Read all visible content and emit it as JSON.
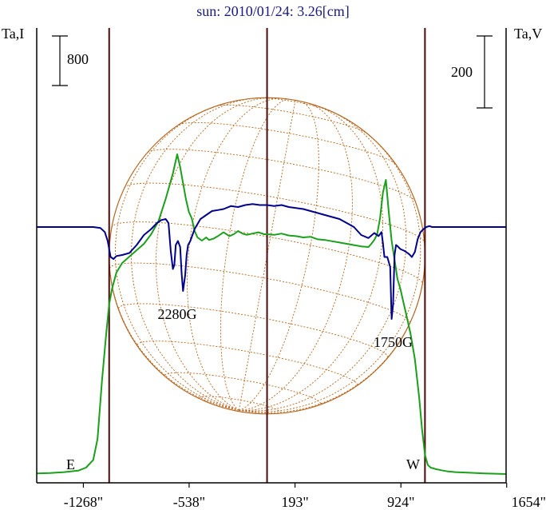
{
  "chart_data": {
    "type": "line",
    "title": "sun: 2010/01/24: 3.26[cm]",
    "left_axis_label": "Ta,I",
    "right_axis_label": "Ta,V",
    "xlim": [
      -1590,
      1650
    ],
    "x_ticks": [
      {
        "value": -1268,
        "label": "-1268\""
      },
      {
        "value": -538,
        "label": "-538\""
      },
      {
        "value": 193,
        "label": "193\""
      },
      {
        "value": 924,
        "label": "924\""
      },
      {
        "value": 1654,
        "label": "1654\""
      }
    ],
    "vertical_lines_x": [
      -1090,
      0,
      1090
    ],
    "limb_labels": {
      "east": "E",
      "west": "W"
    },
    "scale_bars": {
      "intensity": "800",
      "polarization": "200"
    },
    "annotations": [
      {
        "text": "2280G",
        "x": -620
      },
      {
        "text": "1750G",
        "x": 870
      }
    ],
    "colors": {
      "intensity": "#1aa01a",
      "polarization": "#00008b",
      "grid": "#b5651d",
      "vlines": "#4a0a0a",
      "axes": "#000000",
      "title": "#1a1a7a"
    },
    "series": [
      {
        "name": "Ta,I",
        "color": "#1aa01a",
        "x": [
          -1590,
          -1500,
          -1400,
          -1300,
          -1250,
          -1200,
          -1170,
          -1140,
          -1110,
          -1090,
          -1070,
          -1040,
          -1000,
          -950,
          -900,
          -850,
          -800,
          -750,
          -700,
          -650,
          -620,
          -600,
          -580,
          -560,
          -540,
          -520,
          -500,
          -480,
          -450,
          -420,
          -400,
          -370,
          -340,
          -300,
          -260,
          -230,
          -200,
          -170,
          -140,
          -100,
          -60,
          -20,
          0,
          50,
          100,
          150,
          200,
          250,
          300,
          350,
          400,
          450,
          500,
          550,
          600,
          650,
          700,
          720,
          740,
          760,
          780,
          800,
          820,
          840,
          860,
          870,
          880,
          890,
          900,
          920,
          940,
          960,
          990,
          1020,
          1050,
          1070,
          1090,
          1110,
          1130,
          1160,
          1200,
          1250,
          1300,
          1400,
          1500,
          1650
        ],
        "y": [
          -90,
          -85,
          -70,
          -45,
          0,
          120,
          450,
          1350,
          2100,
          2550,
          2800,
          3050,
          3200,
          3300,
          3400,
          3500,
          3650,
          3850,
          4200,
          4600,
          4900,
          4700,
          4450,
          4200,
          4000,
          3900,
          3700,
          3600,
          3550,
          3600,
          3560,
          3580,
          3620,
          3680,
          3620,
          3650,
          3700,
          3660,
          3640,
          3660,
          3680,
          3650,
          3650,
          3640,
          3660,
          3630,
          3620,
          3600,
          3610,
          3570,
          3560,
          3540,
          3520,
          3500,
          3480,
          3460,
          3450,
          3500,
          3560,
          3650,
          3900,
          4300,
          4500,
          4000,
          3550,
          3400,
          3250,
          3100,
          2950,
          2800,
          2600,
          2400,
          2100,
          1700,
          1100,
          600,
          200,
          40,
          0,
          -20,
          -40,
          -60,
          -70,
          -80,
          -90,
          -100
        ]
      },
      {
        "name": "Ta,V",
        "color": "#00008b",
        "x": [
          -1590,
          -1300,
          -1200,
          -1150,
          -1120,
          -1100,
          -1080,
          -1060,
          -1040,
          -1000,
          -950,
          -900,
          -850,
          -800,
          -760,
          -730,
          -700,
          -680,
          -665,
          -650,
          -640,
          -630,
          -615,
          -600,
          -590,
          -580,
          -565,
          -555,
          -545,
          -530,
          -500,
          -460,
          -420,
          -380,
          -340,
          -300,
          -250,
          -200,
          -150,
          -100,
          -50,
          0,
          50,
          100,
          150,
          200,
          250,
          300,
          350,
          400,
          450,
          500,
          550,
          600,
          650,
          700,
          740,
          770,
          790,
          800,
          810,
          830,
          850,
          860,
          870,
          880,
          890,
          900,
          920,
          950,
          980,
          1000,
          1020,
          1040,
          1060,
          1080,
          1100,
          1120,
          1140,
          1200,
          1300,
          1400,
          1500,
          1650
        ],
        "y": [
          0,
          0,
          0,
          -5,
          -25,
          -70,
          -150,
          -160,
          -145,
          -140,
          -130,
          -90,
          -40,
          -10,
          20,
          35,
          40,
          20,
          -120,
          -210,
          -190,
          -90,
          -70,
          -100,
          -230,
          -320,
          -240,
          -140,
          -90,
          -70,
          -10,
          40,
          60,
          80,
          85,
          90,
          105,
          100,
          110,
          115,
          110,
          110,
          105,
          110,
          100,
          95,
          90,
          80,
          70,
          60,
          50,
          40,
          20,
          0,
          -40,
          -55,
          -30,
          -45,
          -25,
          -80,
          -150,
          -150,
          -200,
          -460,
          -390,
          -140,
          -90,
          -95,
          -110,
          -120,
          -135,
          -150,
          -125,
          -60,
          -25,
          -10,
          0,
          5,
          0,
          0,
          0,
          0,
          0,
          0
        ]
      }
    ]
  }
}
